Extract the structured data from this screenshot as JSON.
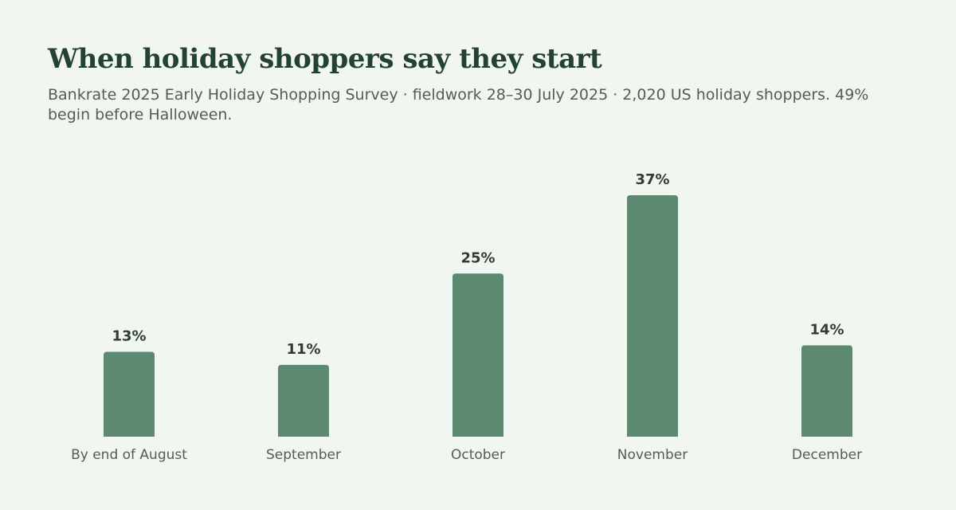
{
  "header": {
    "title": "When holiday shoppers say they start",
    "subtitle": "Bankrate 2025 Early Holiday Shopping Survey · fieldwork 28–30 July 2025 · 2,020 US holiday shoppers. 49% begin before Halloween."
  },
  "colors": {
    "background": "#f1f6f1",
    "bar": "#5b8a70",
    "title": "#23432f",
    "value_label": "#2e3e36",
    "axis_label": "#555b58"
  },
  "chart_data": {
    "type": "bar",
    "title": "When holiday shoppers say they start",
    "categories": [
      "By end of August",
      "September",
      "October",
      "November",
      "December"
    ],
    "values": [
      13,
      11,
      25,
      37,
      14
    ],
    "value_labels": [
      "13%",
      "11%",
      "25%",
      "37%",
      "14%"
    ],
    "unit": "%",
    "xlabel": "",
    "ylabel": "",
    "ylim": [
      0,
      37
    ],
    "grid": false,
    "legend": "none"
  }
}
